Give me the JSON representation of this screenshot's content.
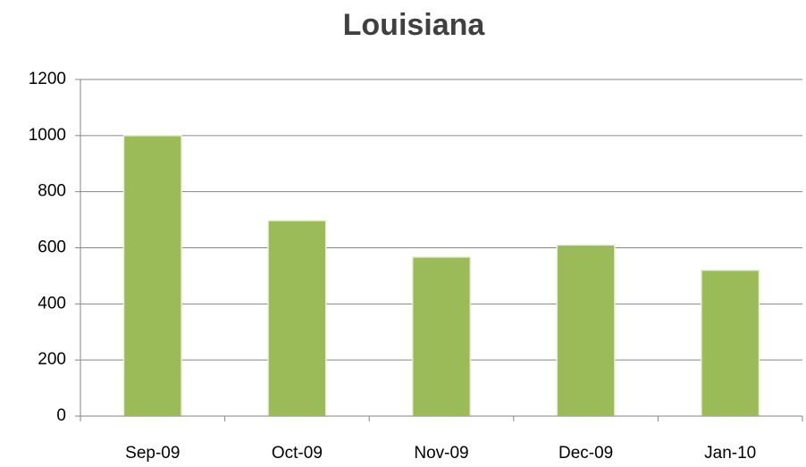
{
  "chart_data": {
    "type": "bar",
    "title": "Louisiana",
    "categories": [
      "Sep-09",
      "Oct-09",
      "Nov-09",
      "Dec-09",
      "Jan-10"
    ],
    "values": [
      1000,
      697,
      567,
      610,
      520
    ],
    "color": "#9bbb59",
    "ylim": [
      0,
      1200
    ],
    "yticks": [
      0,
      200,
      400,
      600,
      800,
      1000,
      1200
    ],
    "grid": true
  }
}
